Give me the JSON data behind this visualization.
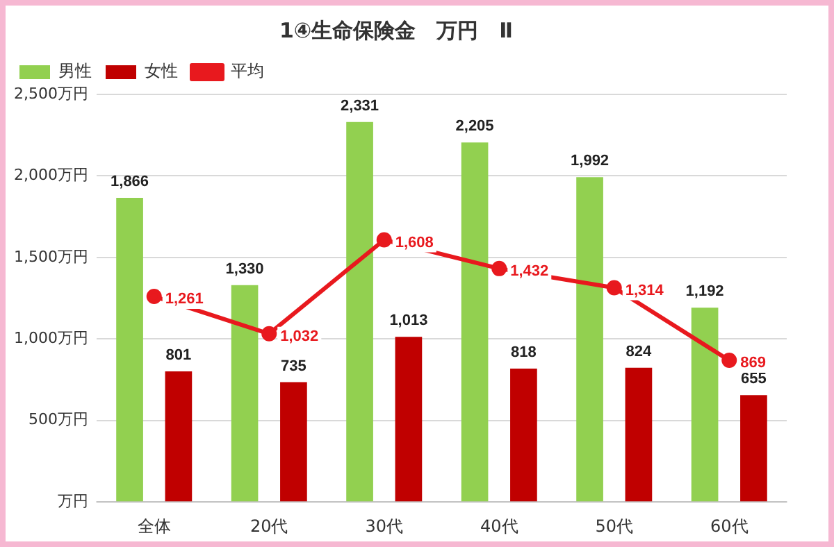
{
  "chart_data": {
    "type": "bar",
    "title": "1④生命保険金　万円　Ⅱ",
    "categories": [
      "全体",
      "20代",
      "30代",
      "40代",
      "50代",
      "60代"
    ],
    "series": [
      {
        "name": "男性",
        "color": "#92d050",
        "values": [
          1866,
          1330,
          2331,
          2205,
          1992,
          1192
        ],
        "value_labels": [
          "1,866",
          "1,330",
          "2,331",
          "2,205",
          "1,992",
          "1,192"
        ]
      },
      {
        "name": "女性",
        "color": "#c00000",
        "values": [
          801,
          735,
          1013,
          818,
          824,
          655
        ],
        "value_labels": [
          "801",
          "735",
          "1,013",
          "818",
          "824",
          "655"
        ]
      },
      {
        "name": "平均",
        "type": "line",
        "color": "#e8191e",
        "values": [
          1261,
          1032,
          1608,
          1432,
          1314,
          869
        ],
        "value_labels": [
          "1,261",
          "1,032",
          "1,608",
          "1,432",
          "1,314",
          "869"
        ]
      }
    ],
    "ylim": [
      0,
      2500
    ],
    "yticks": [
      {
        "value": 0,
        "label": "万円"
      },
      {
        "value": 500,
        "label": "500万円"
      },
      {
        "value": 1000,
        "label": "1,000万円"
      },
      {
        "value": 1500,
        "label": "1,500万円"
      },
      {
        "value": 2000,
        "label": "2,000万円"
      },
      {
        "value": 2500,
        "label": "2,500万円"
      }
    ],
    "grid": "y",
    "legend": "top left",
    "marker": "circle"
  }
}
